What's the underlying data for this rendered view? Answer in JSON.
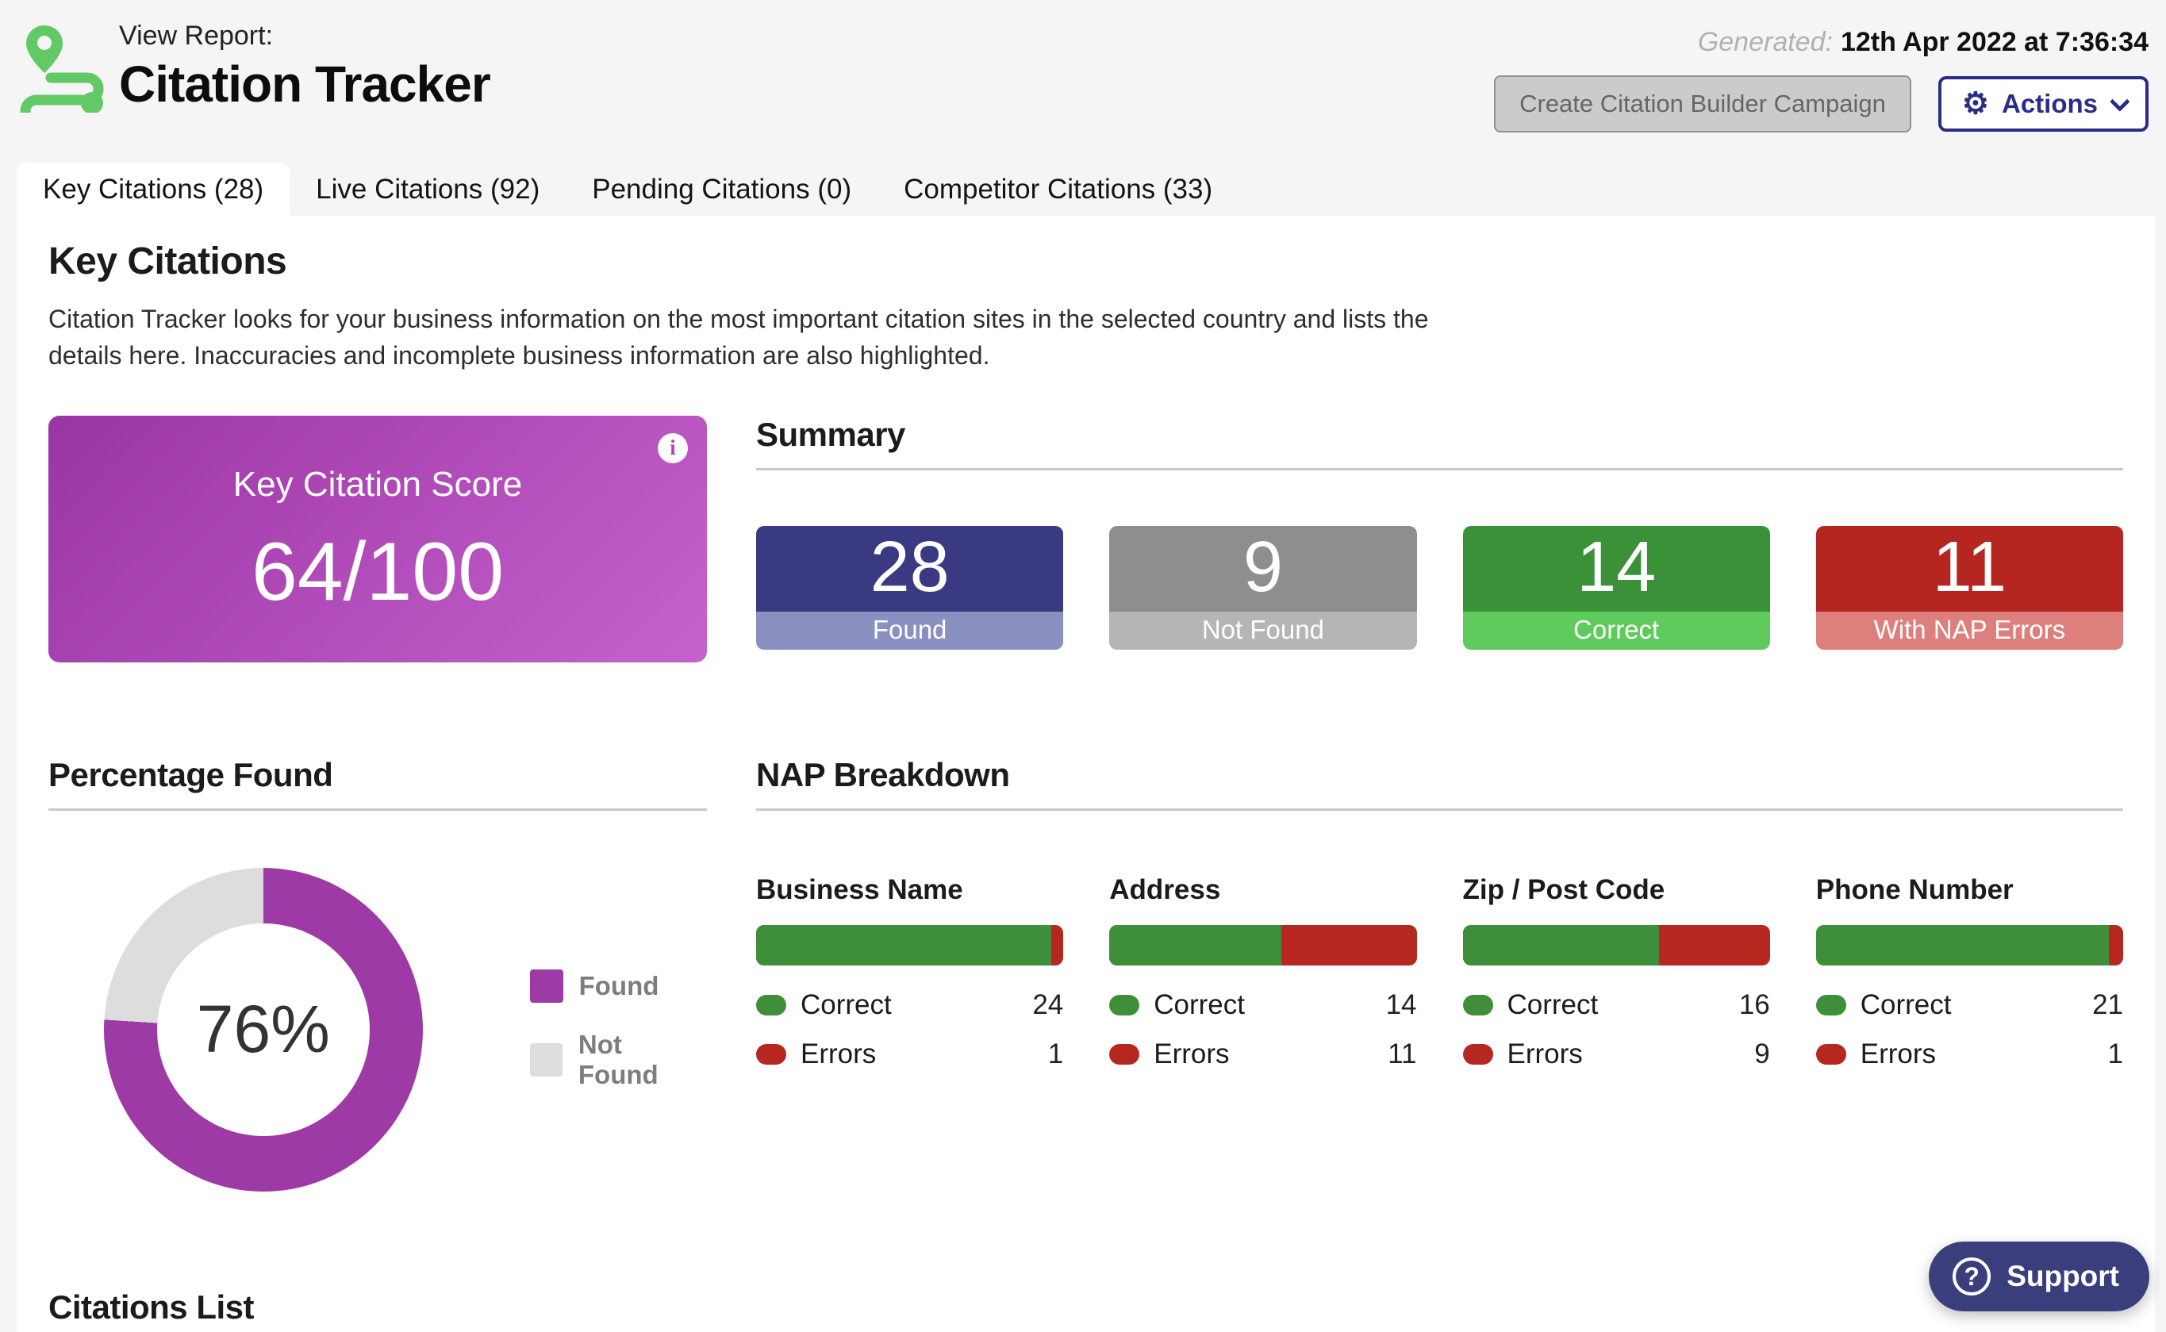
{
  "header": {
    "view_report_label": "View Report:",
    "title": "Citation Tracker",
    "generated_label": "Generated:",
    "generated_value": "12th Apr 2022 at 7:36:34",
    "create_campaign_button": "Create Citation Builder Campaign",
    "actions_button": "Actions",
    "gear_icon": "gear",
    "logo_color": "#63c967",
    "actions_accent": "#2a2d85"
  },
  "tabs": [
    {
      "label": "Key Citations (28)",
      "active": true
    },
    {
      "label": "Live Citations (92)",
      "active": false
    },
    {
      "label": "Pending Citations (0)",
      "active": false
    },
    {
      "label": "Competitor Citations (33)",
      "active": false
    }
  ],
  "key_citations": {
    "heading": "Key Citations",
    "description": "Citation Tracker looks for your business information on the most important citation sites in the selected country and lists the details here. Inaccuracies and incomplete business information are also highlighted.",
    "score_card": {
      "label": "Key Citation Score",
      "value": "64/100",
      "info_icon": "i",
      "gradient": [
        "#9a35a4",
        "#c662cd"
      ]
    }
  },
  "summary": {
    "heading": "Summary",
    "stats": [
      {
        "value": "28",
        "label": "Found",
        "color": "#3a3a82",
        "band": "#8a90bf"
      },
      {
        "value": "9",
        "label": "Not Found",
        "color": "#8e8e8e",
        "band": "#b5b5b5"
      },
      {
        "value": "14",
        "label": "Correct",
        "color": "#3a9138",
        "band": "#5ecb5c"
      },
      {
        "value": "11",
        "label": "With NAP Errors",
        "color": "#b52621",
        "band": "#dd7f7c"
      }
    ]
  },
  "percentage_found": {
    "heading": "Percentage Found",
    "legend": [
      {
        "label": "Found",
        "color": "#9e3aa6"
      },
      {
        "label": "Not Found",
        "color": "#dddddd"
      }
    ]
  },
  "chart_data": [
    {
      "type": "pie",
      "donut": true,
      "title": "Percentage Found",
      "categories": [
        "Found",
        "Not Found"
      ],
      "values": [
        76,
        24
      ],
      "center_label": "76%",
      "colors": [
        "#9e3aa6",
        "#dddddd"
      ],
      "legend_position": "right"
    },
    {
      "type": "bar",
      "title": "NAP Breakdown",
      "categories": [
        "Business Name",
        "Address",
        "Zip / Post Code",
        "Phone Number"
      ],
      "series": [
        {
          "name": "Correct",
          "values": [
            24,
            14,
            16,
            21
          ],
          "color": "#3f8f3a"
        },
        {
          "name": "Errors",
          "values": [
            1,
            11,
            9,
            1
          ],
          "color": "#b6281f"
        }
      ],
      "orientation": "horizontal-stacked-percent"
    }
  ],
  "nap_breakdown": {
    "heading": "NAP Breakdown",
    "correct_label": "Correct",
    "errors_label": "Errors",
    "correct_color": "#3f8f3a",
    "error_color": "#b6281f",
    "columns": [
      {
        "label": "Business Name",
        "correct": 24,
        "errors": 1
      },
      {
        "label": "Address",
        "correct": 14,
        "errors": 11
      },
      {
        "label": "Zip / Post Code",
        "correct": 16,
        "errors": 9
      },
      {
        "label": "Phone Number",
        "correct": 21,
        "errors": 1
      }
    ]
  },
  "citations_list": {
    "heading": "Citations List"
  },
  "support": {
    "label": "Support",
    "icon": "question-mark"
  }
}
